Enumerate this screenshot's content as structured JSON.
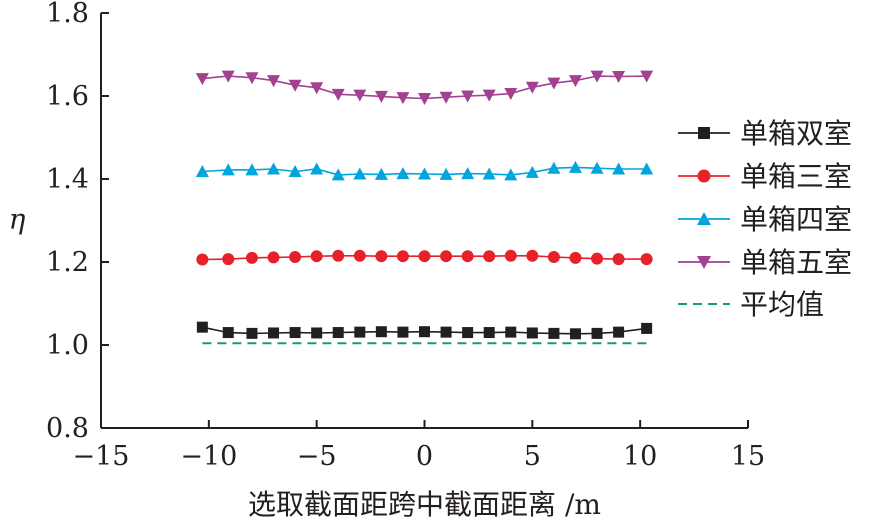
{
  "chart_data": {
    "type": "line",
    "title": "",
    "xlabel": "选取截面距跨中截面距离 /m",
    "ylabel": "η",
    "xlim": [
      -15,
      15
    ],
    "ylim": [
      0.8,
      1.8
    ],
    "x_ticks": [
      "−15",
      "−10",
      "−5",
      "0",
      "5",
      "10",
      "15"
    ],
    "y_ticks": [
      "0.8",
      "1.0",
      "1.2",
      "1.4",
      "1.6",
      "1.8"
    ],
    "legend_position": "right",
    "x": [
      -10.3,
      -9.1,
      -8,
      -7,
      -6,
      -5,
      -4,
      -3,
      -2,
      -1,
      0,
      1,
      2,
      3,
      4,
      5,
      6,
      7,
      8,
      9,
      10.3
    ],
    "series": [
      {
        "name": "单箱双室",
        "color": "#231f20",
        "marker": "square",
        "line_style": "solid",
        "values": [
          1.043,
          1.03,
          1.028,
          1.029,
          1.03,
          1.029,
          1.03,
          1.031,
          1.032,
          1.031,
          1.032,
          1.031,
          1.03,
          1.03,
          1.031,
          1.029,
          1.028,
          1.027,
          1.028,
          1.031,
          1.04
        ]
      },
      {
        "name": "单箱三室",
        "color": "#e62129",
        "marker": "circle",
        "line_style": "solid",
        "values": [
          1.206,
          1.207,
          1.21,
          1.211,
          1.212,
          1.214,
          1.215,
          1.215,
          1.214,
          1.214,
          1.214,
          1.214,
          1.214,
          1.214,
          1.215,
          1.215,
          1.212,
          1.21,
          1.208,
          1.207,
          1.207
        ]
      },
      {
        "name": "单箱四室",
        "color": "#00a5dc",
        "marker": "triangle-up",
        "line_style": "solid",
        "values": [
          1.418,
          1.422,
          1.422,
          1.424,
          1.418,
          1.424,
          1.41,
          1.412,
          1.411,
          1.413,
          1.412,
          1.411,
          1.413,
          1.412,
          1.41,
          1.416,
          1.426,
          1.428,
          1.426,
          1.424,
          1.424
        ]
      },
      {
        "name": "单箱五室",
        "color": "#a2418f",
        "marker": "triangle-down",
        "line_style": "solid",
        "values": [
          1.642,
          1.648,
          1.644,
          1.637,
          1.626,
          1.62,
          1.604,
          1.602,
          1.599,
          1.596,
          1.594,
          1.597,
          1.6,
          1.602,
          1.606,
          1.621,
          1.631,
          1.637,
          1.648,
          1.647,
          1.648
        ]
      },
      {
        "name": "平均值",
        "color": "#1a9b6c",
        "marker": "none",
        "line_style": "dashed",
        "values": [
          1.004,
          1.004,
          1.004,
          1.004,
          1.004,
          1.004,
          1.004,
          1.004,
          1.004,
          1.004,
          1.004,
          1.004,
          1.004,
          1.004,
          1.004,
          1.004,
          1.004,
          1.004,
          1.004,
          1.004,
          1.004
        ]
      }
    ]
  }
}
